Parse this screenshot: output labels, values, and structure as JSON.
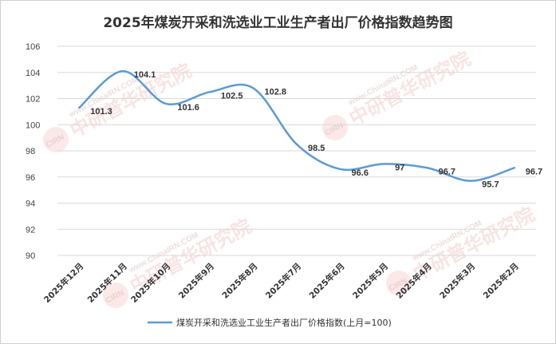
{
  "chart_data": {
    "type": "line",
    "title": "2025年煤炭开采和洗选业工业生产者出厂价格指数趋势图",
    "categories": [
      "2025年12月",
      "2025年11月",
      "2025年10月",
      "2025年9月",
      "2025年8月",
      "2025年7月",
      "2025年6月",
      "2025年5月",
      "2025年4月",
      "2025年3月",
      "2025年2月"
    ],
    "series": [
      {
        "name": "煤炭开采和洗选业工业生产者出厂价格指数(上月=100)",
        "values": [
          101.3,
          104.1,
          101.6,
          102.5,
          102.8,
          98.5,
          96.6,
          97,
          96.7,
          95.7,
          96.7
        ],
        "labels": [
          "101.3",
          "104.1",
          "101.6",
          "102.5",
          "102.8",
          "98.5",
          "96.6",
          "97",
          "96.7",
          "95.7",
          "96.7"
        ],
        "color": "#5b9bd5"
      }
    ],
    "ylim": [
      90,
      106
    ],
    "yticks": [
      "90",
      "92",
      "94",
      "96",
      "98",
      "100",
      "102",
      "104",
      "106"
    ],
    "xlabel": "",
    "ylabel": "",
    "grid": true,
    "legend": "bottom"
  },
  "watermark": {
    "logo_text": "CIRN",
    "name": "中研普华研究院",
    "url": "www.ChinaIRN.COM"
  }
}
